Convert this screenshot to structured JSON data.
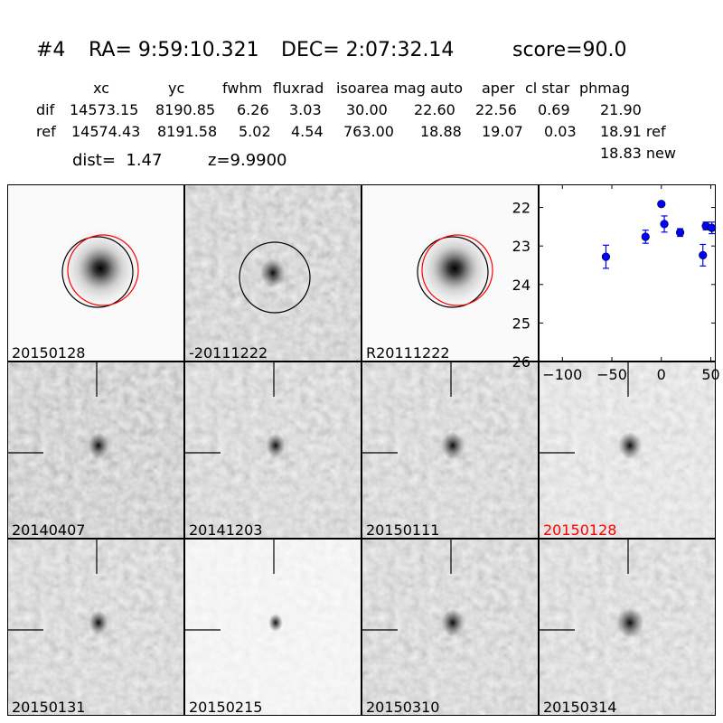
{
  "header": {
    "id": "#4",
    "ra": "RA= 9:59:10.321",
    "dec": "DEC= 2:07:32.14",
    "score": "score=90.0"
  },
  "table": {
    "columns": [
      "xc",
      "yc",
      "fwhm",
      "fluxrad",
      "isoarea mag auto",
      "aper",
      "cl star",
      "phmag"
    ],
    "rows": [
      {
        "label": "dif",
        "values": [
          "14573.15",
          "8190.85",
          "6.26",
          "3.03",
          "30.00",
          "22.60",
          "22.56",
          "0.69",
          "21.90"
        ]
      },
      {
        "label": "ref",
        "values": [
          "14574.43",
          "8191.58",
          "5.02",
          "4.54",
          "763.00",
          "18.88",
          "19.07",
          "0.03",
          "18.91 ref"
        ]
      }
    ],
    "new_mag": "18.83 new",
    "dist": "dist=  1.47",
    "z": "z=9.9900"
  },
  "panels": [
    {
      "label": "20150128",
      "highlight": false
    },
    {
      "label": "-20111222",
      "highlight": false
    },
    {
      "label": "R20111222",
      "highlight": false
    },
    {
      "label": "20140407",
      "highlight": false
    },
    {
      "label": "20141203",
      "highlight": false
    },
    {
      "label": "20150111",
      "highlight": false
    },
    {
      "label": "20150128",
      "highlight": true
    },
    {
      "label": "20150131",
      "highlight": false
    },
    {
      "label": "20150215",
      "highlight": false
    },
    {
      "label": "20150310",
      "highlight": false
    },
    {
      "label": "20150314",
      "highlight": false
    }
  ],
  "colors": {
    "highlight": "#ff0000",
    "points": "#0000ff",
    "aperture_ref": "#ff0000",
    "aperture_dif": "#000000"
  },
  "chart_data": {
    "type": "scatter",
    "error_bars": true,
    "x": [
      -56,
      -16,
      0,
      3,
      19,
      42,
      45,
      51
    ],
    "y": [
      23.28,
      22.76,
      21.91,
      22.43,
      22.65,
      23.24,
      22.48,
      22.53
    ],
    "yerr": [
      0.3,
      0.17,
      0.03,
      0.21,
      0.1,
      0.28,
      0.1,
      0.15
    ],
    "xlim": [
      -124,
      55
    ],
    "ylim": [
      26,
      21.4
    ],
    "y_inverted": true,
    "xticks": [
      "−100",
      "−50",
      "0",
      "50"
    ],
    "xtick_values": [
      -100,
      -50,
      0,
      50
    ],
    "yticks": [
      "22",
      "23",
      "24",
      "25",
      "26"
    ],
    "ytick_values": [
      22,
      23,
      24,
      25,
      26
    ],
    "grid": false
  }
}
